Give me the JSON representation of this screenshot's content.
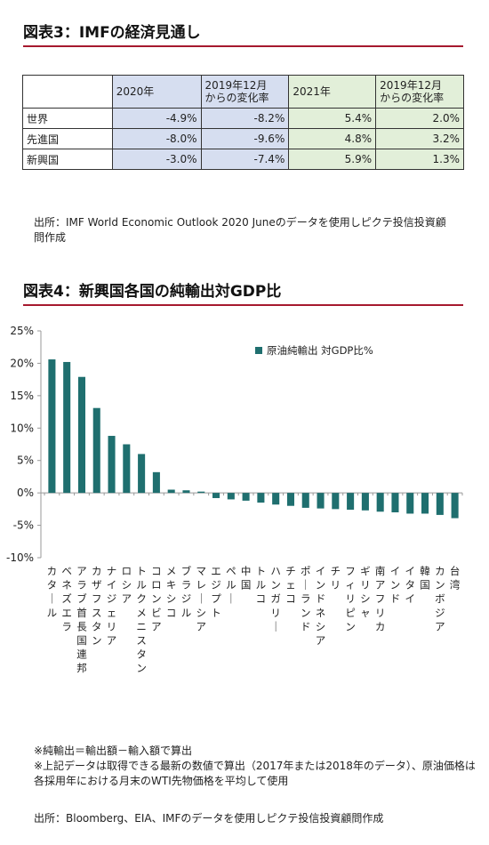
{
  "table_section": {
    "title": "図表3：IMFの経済見通し",
    "columns": [
      "",
      "2020年",
      "2019年12月からの変化率",
      "2021年",
      "2019年12月からの変化率"
    ],
    "header_lines": [
      [
        ""
      ],
      [
        "2020年"
      ],
      [
        "2019年12月",
        "からの変化率"
      ],
      [
        "2021年"
      ],
      [
        "2019年12月",
        "からの変化率"
      ]
    ],
    "rows": [
      {
        "label": "世界",
        "v2020": "-4.9%",
        "c2020": "-8.2%",
        "v2021": "5.4%",
        "c2021": "2.0%"
      },
      {
        "label": "先進国",
        "v2020": "-8.0%",
        "c2020": "-9.6%",
        "v2021": "4.8%",
        "c2021": "3.2%"
      },
      {
        "label": "新興国",
        "v2020": "-3.0%",
        "c2020": "-7.4%",
        "v2021": "5.9%",
        "c2021": "1.3%"
      }
    ],
    "source": "出所：IMF World Economic Outlook 2020 Juneのデータを使用しピクテ投信投資顧問作成",
    "colors": {
      "blue_cells": "#d6def0",
      "green_cells": "#e2efd9"
    }
  },
  "chart_section": {
    "title": "図表4：新興国各国の純輸出対GDP比",
    "notes": [
      "※純輸出＝輸出額－輸入額で算出",
      "※上記データは取得できる最新の数値で算出（2017年または2018年のデータ）、原油価格は各採用年における月末のWTI先物価格を平均して使用"
    ],
    "source": "出所：Bloomberg、EIA、IMFのデータを使用しピクテ投信投資顧問作成"
  },
  "chart_data": {
    "type": "bar",
    "title": "",
    "xlabel": "",
    "ylabel": "",
    "ylim": [
      -10,
      25
    ],
    "yticks": [
      -10,
      -5,
      0,
      5,
      10,
      15,
      20,
      25
    ],
    "ytick_labels": [
      "-10%",
      "-5%",
      "0%",
      "5%",
      "10%",
      "15%",
      "20%",
      "25%"
    ],
    "legend": {
      "position": "top-right"
    },
    "grid": false,
    "bar_color": "#1f6f6f",
    "categories": [
      "カタール",
      "ベネズエラ",
      "アラブ首長国連邦",
      "カザフスタン",
      "ナイジェリア",
      "ロシア",
      "トルクメニスタン",
      "コロンビア",
      "メキシコ",
      "ブラジル",
      "マレーシア",
      "エジプト",
      "ペルー",
      "中国",
      "トルコ",
      "ハンガリー",
      "チェコ",
      "ポーランド",
      "インドネシア",
      "チリ",
      "フィリピン",
      "ギリシャ",
      "南アフリカ",
      "インド",
      "イタイ",
      "韓国",
      "カンボジア",
      "台湾"
    ],
    "series": [
      {
        "name": "原油純輸出 対GDP比%",
        "values": [
          20.6,
          20.2,
          17.9,
          13.1,
          8.8,
          7.5,
          6.0,
          3.2,
          0.5,
          0.4,
          0.2,
          -0.8,
          -1.0,
          -1.2,
          -1.5,
          -1.8,
          -2.0,
          -2.3,
          -2.4,
          -2.5,
          -2.6,
          -2.7,
          -2.9,
          -3.0,
          -3.2,
          -3.2,
          -3.4,
          -3.9
        ]
      }
    ]
  }
}
